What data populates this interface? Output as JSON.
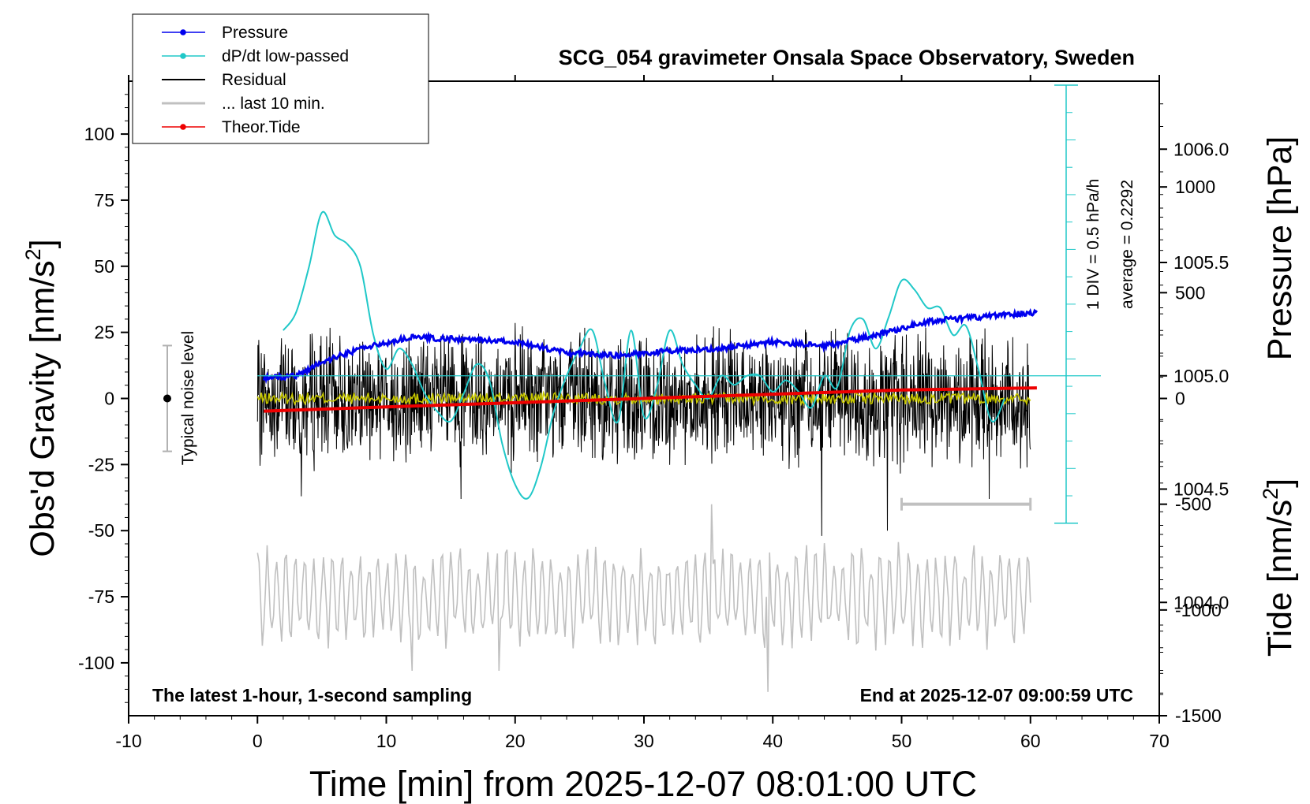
{
  "chart_data": {
    "type": "line",
    "title": "SCG_054 gravimeter Onsala Space Observatory, Sweden",
    "xlabel": "Time [min] from 2025-12-07 08:01:00 UTC",
    "ylabel_left": "Obs'd Gravity [nm/s",
    "ylabel_pressure": "Pressure [hPa]",
    "ylabel_tide": "Tide [nm/s",
    "unit_superscript": "2",
    "xlim": [
      -10,
      70
    ],
    "ylim": [
      -120,
      120
    ],
    "pressure_lim": [
      1003.5,
      1006.3
    ],
    "tide_lim": [
      -1500,
      1500
    ],
    "x_ticks": [
      -10,
      0,
      10,
      20,
      30,
      40,
      50,
      60,
      70
    ],
    "x_tick_labels": [
      "-10",
      "0",
      "10",
      "20",
      "30",
      "40",
      "50",
      "60",
      "70"
    ],
    "y_ticks": [
      -100,
      -75,
      -50,
      -25,
      0,
      25,
      50,
      75,
      100
    ],
    "y_tick_labels": [
      "-100",
      "-75",
      "-50",
      "-25",
      "0",
      "25",
      "50",
      "75",
      "100"
    ],
    "pressure_ticks": [
      1004.0,
      1004.5,
      1005.0,
      1005.5,
      1006.0
    ],
    "pressure_tick_labels": [
      "1004.0",
      "1004.5",
      "1005.0",
      "1005.5",
      "1006.0"
    ],
    "tide_ticks": [
      -1500,
      -1000,
      -500,
      0,
      500,
      1000
    ],
    "tide_tick_labels": [
      "-1500",
      "-1000",
      "-500",
      "0",
      "500",
      "1000"
    ],
    "legend": [
      {
        "label": "Pressure",
        "color": "#0000ee",
        "marker": true
      },
      {
        "label": "dP/dt low-passed",
        "color": "#20c8c8",
        "marker": true
      },
      {
        "label": "Residual",
        "color": "#000000",
        "marker": false
      },
      {
        "label": "... last 10 min.",
        "color": "#c0c0c0",
        "marker": false
      },
      {
        "label": "Theor.Tide",
        "color": "#ee0000",
        "marker": true
      }
    ],
    "legend_position": "top-left",
    "annotations": {
      "bottom_left": "The latest 1-hour, 1-second sampling",
      "bottom_right": "End at 2025-12-07 09:00:59 UTC",
      "noise_label": "Typical noise level",
      "dpdt_scale": "1 DIV = 0.5 hPa/h",
      "dpdt_average": "average = 0.2292"
    },
    "noise_bar": {
      "x": -7,
      "y_low": -20,
      "y_high": 20
    },
    "last10_bar": {
      "x_start": 50,
      "x_end": 60
    },
    "series": [
      {
        "name": "Pressure",
        "axis": "pressure",
        "color": "#0000ee",
        "x": [
          0.5,
          3,
          5,
          8,
          12,
          16,
          20,
          24,
          28,
          32,
          36,
          40,
          44,
          48,
          52,
          56,
          60.5
        ],
        "values": [
          1004.99,
          1005.0,
          1005.06,
          1005.12,
          1005.17,
          1005.16,
          1005.15,
          1005.1,
          1005.09,
          1005.11,
          1005.12,
          1005.15,
          1005.13,
          1005.18,
          1005.24,
          1005.26,
          1005.28
        ]
      },
      {
        "name": "dP/dt low-passed",
        "axis": "dpdt",
        "color": "#20c8c8",
        "x": [
          2,
          3,
          4,
          5,
          6,
          7,
          8,
          9,
          10,
          11,
          12,
          13,
          14,
          15,
          16,
          17,
          18,
          19,
          20,
          21,
          22,
          23,
          24,
          25,
          26,
          27,
          28,
          29,
          30,
          31,
          32,
          33,
          34,
          35,
          36,
          37,
          38,
          39,
          40,
          41,
          42,
          43,
          44,
          45,
          46,
          47,
          48,
          49,
          50,
          51,
          52,
          53,
          54,
          55,
          56,
          57,
          58
        ],
        "values": [
          1005.2,
          1005.28,
          1005.48,
          1005.72,
          1005.62,
          1005.58,
          1005.48,
          1005.18,
          1005.03,
          1005.12,
          1005.05,
          1004.92,
          1004.84,
          1004.8,
          1004.92,
          1005.05,
          1004.98,
          1004.7,
          1004.52,
          1004.46,
          1004.6,
          1004.84,
          1005.0,
          1005.12,
          1005.2,
          1004.96,
          1004.8,
          1005.2,
          1004.82,
          1004.95,
          1005.2,
          1005.05,
          1004.96,
          1004.9,
          1005.0,
          1004.96,
          1005.0,
          1005.0,
          1004.93,
          1004.98,
          1004.93,
          1004.86,
          1005.0,
          1004.95,
          1005.2,
          1005.25,
          1005.12,
          1005.26,
          1005.42,
          1005.38,
          1005.3,
          1005.3,
          1005.18,
          1005.22,
          1005.02,
          1004.8,
          1004.9
        ]
      },
      {
        "name": "Residual",
        "axis": "gravity",
        "color": "#000000",
        "x_range": [
          0,
          60
        ],
        "amplitude_typical": 20,
        "spikes": [
          [
            3.4,
            43
          ],
          [
            3.4,
            -37
          ],
          [
            15.8,
            -38
          ],
          [
            43.8,
            53
          ],
          [
            43.8,
            -52
          ],
          [
            48.9,
            45
          ],
          [
            48.9,
            -50
          ],
          [
            56.8,
            -38
          ]
        ]
      },
      {
        "name": "Residual low-passed",
        "axis": "gravity",
        "color": "#c8c800",
        "x_range": [
          0,
          60
        ],
        "mean": 0
      },
      {
        "name": "... last 10 min.",
        "axis": "gravity",
        "color": "#c0c0c0",
        "x_range": [
          0,
          60
        ],
        "center": -75,
        "amplitude_typical": 15,
        "extremes": [
          [
            35.3,
            -40
          ],
          [
            39.6,
            -111
          ],
          [
            12.0,
            -103
          ],
          [
            18.8,
            -103
          ]
        ]
      },
      {
        "name": "Theor.Tide",
        "axis": "tide",
        "color": "#ee0000",
        "x": [
          0.5,
          10,
          20,
          30,
          40,
          50,
          60.5
        ],
        "values": [
          -60,
          -40,
          -20,
          0,
          20,
          40,
          50
        ]
      }
    ]
  }
}
